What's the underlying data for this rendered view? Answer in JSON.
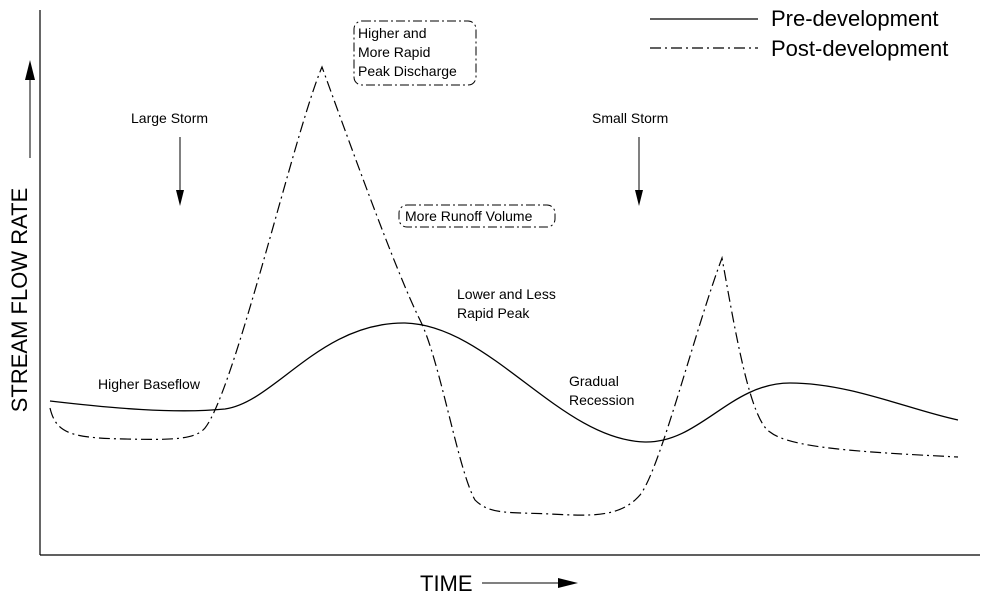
{
  "axes": {
    "x_label": "TIME",
    "y_label": "STREAM FLOW RATE"
  },
  "legend": {
    "pre": "Pre-development",
    "post": "Post-development"
  },
  "annotations": {
    "peak_box": [
      "Higher and",
      "More Rapid",
      "Peak Discharge"
    ],
    "runoff_box": "More Runoff Volume",
    "large_storm": "Large Storm",
    "small_storm": "Small Storm",
    "lower_peak": [
      "Lower and Less",
      "Rapid Peak"
    ],
    "baseflow": "Higher Baseflow",
    "recession": [
      "Gradual",
      "Recession"
    ]
  },
  "colors": {
    "line": "#000000",
    "background": "#ffffff"
  }
}
